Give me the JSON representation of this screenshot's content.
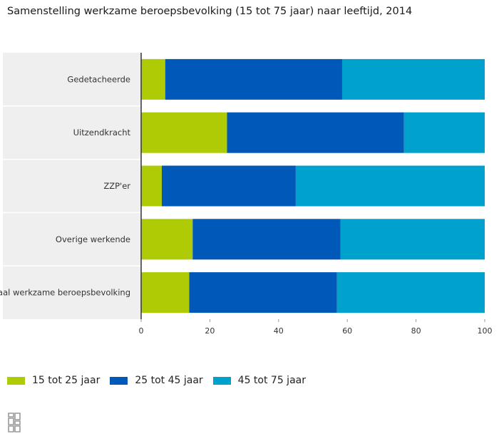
{
  "chart_data": {
    "type": "bar",
    "orientation": "horizontal",
    "stacked": true,
    "title": "Samenstelling werkzame beroepsbevolking (15 tot 75 jaar) naar leeftijd, 2014",
    "xlabel": "",
    "ylabel": "",
    "xlim": [
      0,
      100
    ],
    "x_ticks": [
      "0",
      "20",
      "40",
      "60",
      "80",
      "100"
    ],
    "categories": [
      "Gedetacheerde",
      "Uitzendkracht",
      "ZZP'er",
      "Overige werkende",
      "Totaal werkzame beroepsbevolking"
    ],
    "series": [
      {
        "name": "15 tot 25 jaar",
        "color": "#afcb05",
        "values": [
          7,
          25,
          6,
          15,
          14
        ]
      },
      {
        "name": "25 tot 45 jaar",
        "color": "#0058b8",
        "values": [
          51.5,
          51.5,
          39,
          43,
          43
        ]
      },
      {
        "name": "45 tot 75 jaar",
        "color": "#00a1cd",
        "values": [
          41.5,
          23.5,
          55,
          42,
          43
        ]
      }
    ],
    "grid": true,
    "legend_position": "bottom-left"
  },
  "icons": {
    "logo": "cbs-logo-icon"
  }
}
